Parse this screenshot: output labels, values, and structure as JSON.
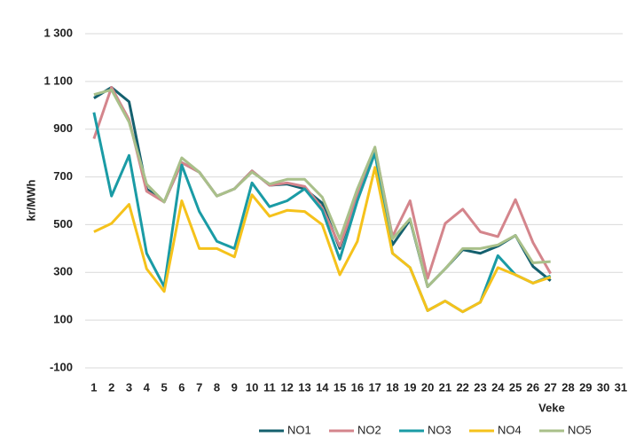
{
  "chart_data": {
    "type": "line",
    "y_label": "kr/MWh",
    "x_label": "Veke",
    "categories": [
      "1",
      "2",
      "3",
      "4",
      "5",
      "6",
      "7",
      "8",
      "9",
      "10",
      "11",
      "12",
      "13",
      "14",
      "15",
      "16",
      "17",
      "18",
      "19",
      "20",
      "21",
      "22",
      "23",
      "24",
      "25",
      "26",
      "27",
      "28",
      "29",
      "30",
      "31"
    ],
    "series": [
      {
        "name": "NO1",
        "color": "#14606e",
        "values": [
          1030,
          1075,
          1015,
          650,
          595,
          760,
          720,
          620,
          650,
          725,
          665,
          670,
          650,
          590,
          400,
          620,
          800,
          415,
          520,
          240,
          315,
          395,
          380,
          410,
          455,
          325,
          265,
          null,
          null,
          null,
          null
        ]
      },
      {
        "name": "NO2",
        "color": "#d4858c",
        "values": [
          860,
          1075,
          940,
          640,
          595,
          760,
          720,
          620,
          650,
          725,
          665,
          675,
          660,
          570,
          410,
          620,
          820,
          450,
          600,
          275,
          505,
          565,
          470,
          450,
          605,
          425,
          295,
          null,
          null,
          null,
          null
        ]
      },
      {
        "name": "NO3",
        "color": "#1a9ba5",
        "values": [
          970,
          620,
          790,
          380,
          240,
          750,
          555,
          430,
          400,
          675,
          575,
          600,
          650,
          560,
          355,
          600,
          800,
          380,
          320,
          140,
          180,
          135,
          175,
          370,
          290,
          255,
          285,
          null,
          null,
          null,
          null
        ]
      },
      {
        "name": "NO4",
        "color": "#f5c21b",
        "values": [
          470,
          505,
          585,
          315,
          220,
          600,
          400,
          400,
          365,
          625,
          535,
          560,
          555,
          500,
          290,
          430,
          740,
          380,
          320,
          140,
          180,
          135,
          175,
          320,
          290,
          255,
          280,
          null,
          null,
          null,
          null
        ]
      },
      {
        "name": "NO5",
        "color": "#a9c08a",
        "values": [
          1045,
          1065,
          930,
          670,
          595,
          780,
          720,
          620,
          650,
          720,
          670,
          690,
          690,
          615,
          440,
          650,
          825,
          440,
          525,
          240,
          315,
          400,
          400,
          415,
          455,
          340,
          345,
          null,
          null,
          null,
          null
        ]
      }
    ],
    "ylim": [
      -100,
      1300
    ],
    "yticks": [
      -100,
      100,
      300,
      500,
      700,
      900,
      {
        "value": 1100,
        "label": "1 100"
      },
      {
        "value": 1300,
        "label": "1 300"
      }
    ],
    "grid": true,
    "legend": "bottom"
  }
}
